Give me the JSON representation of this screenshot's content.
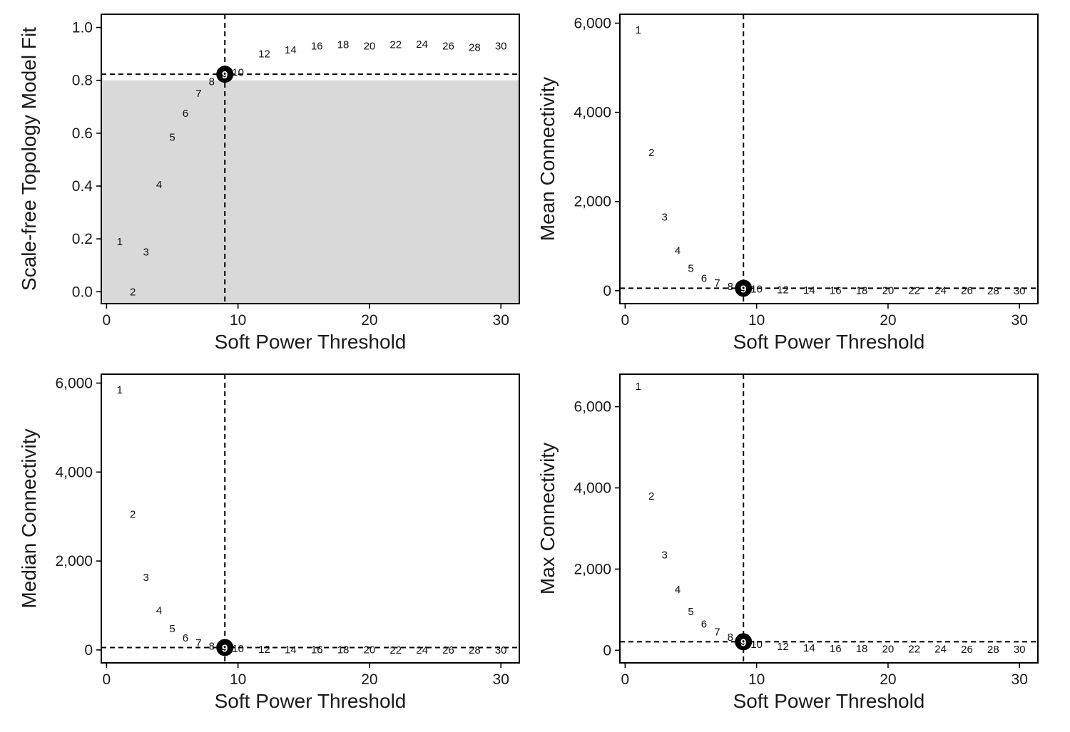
{
  "figure": {
    "x_label": "Soft Power Threshold",
    "selected_power": 9
  },
  "chart_data": [
    {
      "type": "scatter",
      "id": "sft",
      "ylabel": "Scale-free Topology Model Fit",
      "xlabel": "Soft Power Threshold",
      "xlim": [
        -0.4,
        31.4
      ],
      "ylim": [
        -0.045,
        1.05
      ],
      "xticks": [
        0,
        10,
        20,
        30
      ],
      "xtick_labels": [
        "0",
        "10",
        "20",
        "30"
      ],
      "yticks": [
        0,
        0.2,
        0.4,
        0.6,
        0.8,
        1.0
      ],
      "ytick_labels": [
        "0.0",
        "0.2",
        "0.4",
        "0.6",
        "0.8",
        "1.0"
      ],
      "shaded_below": 0.8,
      "shade_color": "#d9d9d9",
      "hline": 0.823,
      "vline": 9,
      "selected": 9,
      "x": [
        1,
        2,
        3,
        4,
        5,
        6,
        7,
        8,
        9,
        10,
        12,
        14,
        16,
        18,
        20,
        22,
        24,
        26,
        28,
        30
      ],
      "y": [
        0.19,
        0.0,
        0.15,
        0.405,
        0.585,
        0.675,
        0.75,
        0.795,
        0.823,
        0.83,
        0.9,
        0.915,
        0.93,
        0.935,
        0.93,
        0.935,
        0.937,
        0.93,
        0.925,
        0.93
      ],
      "labels": [
        "1",
        "2",
        "3",
        "4",
        "5",
        "6",
        "7",
        "8",
        "9",
        "10",
        "12",
        "14",
        "16",
        "18",
        "20",
        "22",
        "24",
        "26",
        "28",
        "30"
      ]
    },
    {
      "type": "scatter",
      "id": "mean",
      "ylabel": "Mean Connectivity",
      "xlabel": "Soft Power Threshold",
      "xlim": [
        -0.4,
        31.4
      ],
      "ylim": [
        -290,
        6200
      ],
      "xticks": [
        0,
        10,
        20,
        30
      ],
      "xtick_labels": [
        "0",
        "10",
        "20",
        "30"
      ],
      "yticks": [
        0,
        2000,
        4000,
        6000
      ],
      "ytick_labels": [
        "0",
        "2,000",
        "4,000",
        "6,000"
      ],
      "hline": 55,
      "vline": 9,
      "selected": 9,
      "x": [
        1,
        2,
        3,
        4,
        5,
        6,
        7,
        8,
        9,
        10,
        12,
        14,
        16,
        18,
        20,
        22,
        24,
        26,
        28,
        30
      ],
      "y": [
        5850,
        3100,
        1650,
        900,
        500,
        280,
        170,
        90,
        55,
        35,
        20,
        12,
        8,
        5,
        4,
        3,
        2,
        2,
        1,
        1
      ],
      "labels": [
        "1",
        "2",
        "3",
        "4",
        "5",
        "6",
        "7",
        "8",
        "9",
        "10",
        "12",
        "14",
        "16",
        "18",
        "20",
        "22",
        "24",
        "26",
        "28",
        "30"
      ]
    },
    {
      "type": "scatter",
      "id": "median",
      "ylabel": "Median Connectivity",
      "xlabel": "Soft Power Threshold",
      "xlim": [
        -0.4,
        31.4
      ],
      "ylim": [
        -290,
        6200
      ],
      "xticks": [
        0,
        10,
        20,
        30
      ],
      "xtick_labels": [
        "0",
        "10",
        "20",
        "30"
      ],
      "yticks": [
        0,
        2000,
        4000,
        6000
      ],
      "ytick_labels": [
        "0",
        "2,000",
        "4,000",
        "6,000"
      ],
      "hline": 55,
      "vline": 9,
      "selected": 9,
      "x": [
        1,
        2,
        3,
        4,
        5,
        6,
        7,
        8,
        9,
        10,
        12,
        14,
        16,
        18,
        20,
        22,
        24,
        26,
        28,
        30
      ],
      "y": [
        5850,
        3050,
        1630,
        890,
        480,
        270,
        160,
        85,
        55,
        30,
        15,
        10,
        6,
        4,
        3,
        2,
        1,
        1,
        1,
        1
      ],
      "labels": [
        "1",
        "2",
        "3",
        "4",
        "5",
        "6",
        "7",
        "8",
        "9",
        "10",
        "12",
        "14",
        "16",
        "18",
        "20",
        "22",
        "24",
        "26",
        "28",
        "30"
      ]
    },
    {
      "type": "scatter",
      "id": "max",
      "ylabel": "Max Connectivity",
      "xlabel": "Soft Power Threshold",
      "xlim": [
        -0.4,
        31.4
      ],
      "ylim": [
        -310,
        6800
      ],
      "xticks": [
        0,
        10,
        20,
        30
      ],
      "xtick_labels": [
        "0",
        "10",
        "20",
        "30"
      ],
      "yticks": [
        0,
        2000,
        4000,
        6000
      ],
      "ytick_labels": [
        "0",
        "2,000",
        "4,000",
        "6,000"
      ],
      "hline": 210,
      "vline": 9,
      "selected": 9,
      "x": [
        1,
        2,
        3,
        4,
        5,
        6,
        7,
        8,
        9,
        10,
        12,
        14,
        16,
        18,
        20,
        22,
        24,
        26,
        28,
        30
      ],
      "y": [
        6500,
        3800,
        2350,
        1500,
        950,
        650,
        450,
        320,
        210,
        150,
        90,
        60,
        45,
        40,
        35,
        30,
        28,
        26,
        25,
        24
      ],
      "labels": [
        "1",
        "2",
        "3",
        "4",
        "5",
        "6",
        "7",
        "8",
        "9",
        "10",
        "12",
        "14",
        "16",
        "18",
        "20",
        "22",
        "24",
        "26",
        "28",
        "30"
      ]
    }
  ]
}
